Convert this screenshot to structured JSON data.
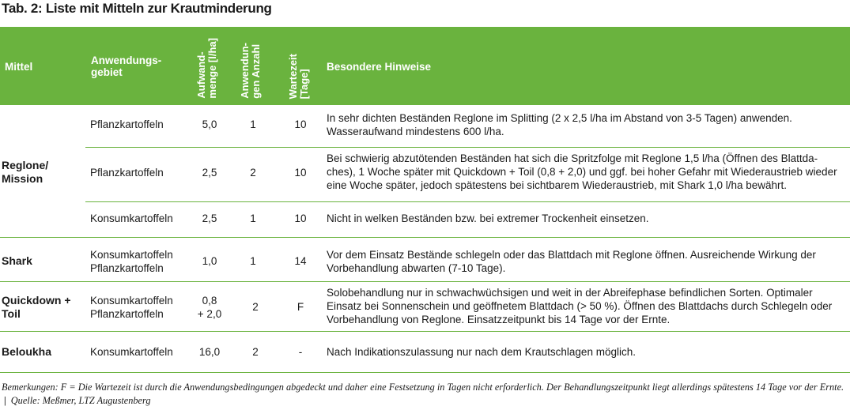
{
  "title": "Tab. 2: Liste mit Mitteln zur Krautminderung",
  "header": {
    "mittel": "Mittel",
    "gebiet_1": "Anwendungs-",
    "gebiet_2": "gebiet",
    "menge_1": "Aufwand-",
    "menge_2": "menge [l/ha]",
    "anzahl_1": "Anwendun-",
    "anzahl_2": "gen Anzahl",
    "wartezeit_1": "Wartezeit",
    "wartezeit_2": "[Tage]",
    "hinweise": "Besondere Hinweise"
  },
  "mittel_labels": {
    "reglone_1": "Reglone/",
    "reglone_2": "Mission",
    "shark": "Shark",
    "quickdown_1": "Quickdown +",
    "quickdown_2": "Toil",
    "beloukha": "Beloukha"
  },
  "rows": [
    {
      "gebiet_1": "Pflanzkartoffeln",
      "gebiet_2": "",
      "menge_1": "5,0",
      "menge_2": "",
      "anzahl": "1",
      "wartezeit": "10",
      "hinweis": "In sehr dichten Beständen Reglone im Splitting (2 x 2,5 l/ha im Abstand von 3-5 Tagen) anwenden. Wasseraufwand mindestens 600 l/ha."
    },
    {
      "gebiet_1": "Pflanzkartoffeln",
      "gebiet_2": "",
      "menge_1": "2,5",
      "menge_2": "",
      "anzahl": "2",
      "wartezeit": "10",
      "hinweis": "Bei schwierig abzutötenden Beständen hat sich die Spritzfolge mit Reglone 1,5 l/ha (Öffnen des Blattda-ches), 1 Woche später mit Quickdown + Toil (0,8 + 2,0) und ggf. bei hoher Gefahr mit Wiederaustrieb wieder eine Woche später, jedoch spätestens bei sichtbarem Wiederaustrieb, mit Shark 1,0 l/ha bewährt."
    },
    {
      "gebiet_1": "Konsumkartoffeln",
      "gebiet_2": "",
      "menge_1": "2,5",
      "menge_2": "",
      "anzahl": "1",
      "wartezeit": "10",
      "hinweis": "Nicht in welken Beständen bzw. bei extremer Trockenheit einsetzen."
    },
    {
      "gebiet_1": "Konsumkartoffeln",
      "gebiet_2": "Pflanzkartoffeln",
      "menge_1": "1,0",
      "menge_2": "",
      "anzahl": "1",
      "wartezeit": "14",
      "hinweis": "Vor dem Einsatz Bestände schlegeln oder das Blattdach mit Reglone öffnen. Ausreichende Wirkung der Vorbehandlung abwarten (7-10 Tage)."
    },
    {
      "gebiet_1": "Konsumkartoffeln",
      "gebiet_2": "Pflanzkartoffeln",
      "menge_1": "0,8",
      "menge_2": "+ 2,0",
      "anzahl": "2",
      "wartezeit": "F",
      "hinweis": "Solobehandlung nur in schwachwüchsigen und weit in der Abreifephase befindlichen Sorten. Optimaler Einsatz bei Sonnenschein und geöffnetem Blattdach (> 50 %). Öffnen des Blattdachs durch Schlegeln oder Vorbehandlung von Reglone. Einsatzzeitpunkt bis 14 Tage vor der Ernte."
    },
    {
      "gebiet_1": "Konsumkartoffeln",
      "gebiet_2": "",
      "menge_1": "16,0",
      "menge_2": "",
      "anzahl": "2",
      "wartezeit": "-",
      "hinweis": "Nach Indikationszulassung nur nach dem Krautschlagen möglich."
    }
  ],
  "footer": {
    "remark": "Bemerkungen: F = Die Wartezeit ist durch die Anwendungsbedingungen abgedeckt und daher eine Festsetzung in Tagen nicht erforderlich. Der Behandlungszeitpunkt liegt allerdings spätestens 14 Tage vor der Ernte.",
    "separator": "|",
    "source": "Quelle: Meßmer, LTZ Augustenberg"
  }
}
